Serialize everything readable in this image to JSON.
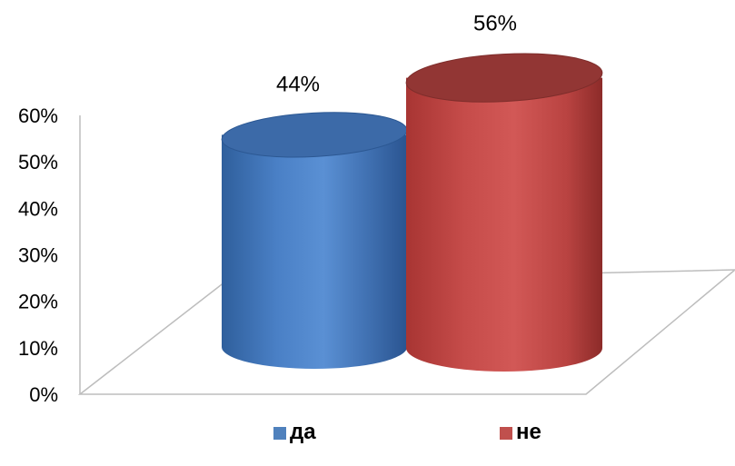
{
  "chart_data": {
    "type": "bar",
    "bar_shape": "cylinder",
    "three_d": true,
    "categories": [
      "да",
      "не"
    ],
    "values": [
      44,
      56
    ],
    "data_labels": [
      "44%",
      "56%"
    ],
    "colors": [
      "#4F81BD",
      "#C0504D"
    ],
    "ylim": [
      0,
      60
    ],
    "yticks": [
      "0%",
      "10%",
      "20%",
      "30%",
      "40%",
      "50%",
      "60%"
    ],
    "legend": {
      "position": "bottom",
      "entries": [
        {
          "label": "да",
          "color": "#4F81BD"
        },
        {
          "label": "не",
          "color": "#C0504D"
        }
      ]
    },
    "grid": false
  }
}
